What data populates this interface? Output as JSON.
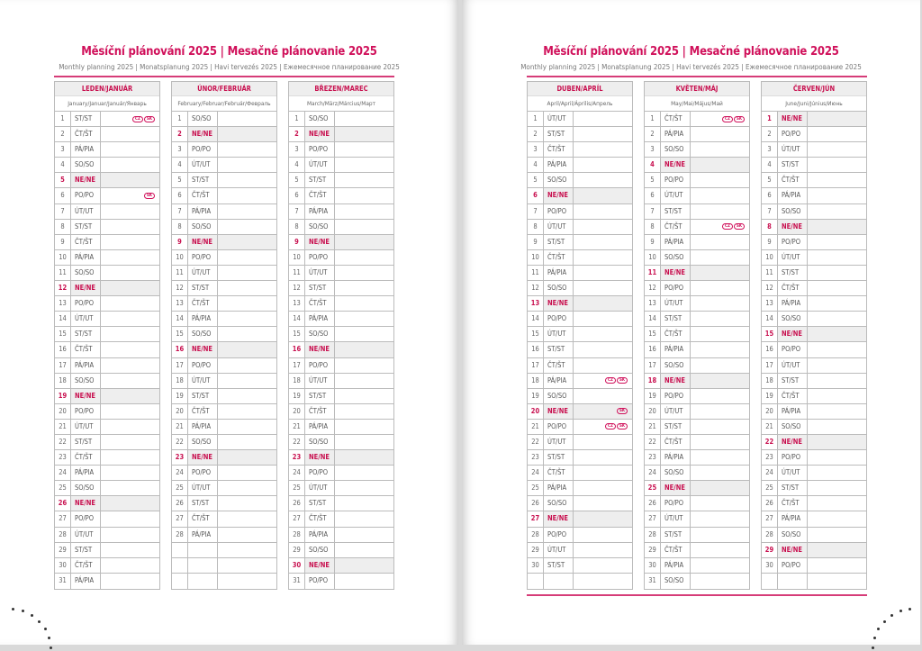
{
  "colors": {
    "accent": "#d0105a",
    "sunday_bg": "#eeeeee"
  },
  "pages": [
    {
      "title": "Měsíční plánování 2025 | Mesačné plánovanie 2025",
      "subtitle": "Monthly planning 2025 | Monatsplanung 2025 | Havi tervezés 2025 | Ежемесячное планирование 2025",
      "months": [
        {
          "name": "LEDEN/JANUÁR",
          "names": "January/Januar/Január/Январь",
          "holidays": {
            "1": [
              "CZ",
              "SK"
            ],
            "6": [
              "SK"
            ]
          },
          "days": [
            "ST/ST",
            "ČT/ŠT",
            "PÁ/PIA",
            "SO/SO",
            "NE/NE",
            "PO/PO",
            "ÚT/UT",
            "ST/ST",
            "ČT/ŠT",
            "PÁ/PIA",
            "SO/SO",
            "NE/NE",
            "PO/PO",
            "ÚT/UT",
            "ST/ST",
            "ČT/ŠT",
            "PÁ/PIA",
            "SO/SO",
            "NE/NE",
            "PO/PO",
            "ÚT/UT",
            "ST/ST",
            "ČT/ŠT",
            "PÁ/PIA",
            "SO/SO",
            "NE/NE",
            "PO/PO",
            "ÚT/UT",
            "ST/ST",
            "ČT/ŠT",
            "PÁ/PIA"
          ]
        },
        {
          "name": "ÚNOR/FEBRUÁR",
          "names": "February/Februar/Február/Февраль",
          "holidays": {},
          "days": [
            "SO/SO",
            "NE/NE",
            "PO/PO",
            "ÚT/UT",
            "ST/ST",
            "ČT/ŠT",
            "PÁ/PIA",
            "SO/SO",
            "NE/NE",
            "PO/PO",
            "ÚT/UT",
            "ST/ST",
            "ČT/ŠT",
            "PÁ/PIA",
            "SO/SO",
            "NE/NE",
            "PO/PO",
            "ÚT/UT",
            "ST/ST",
            "ČT/ŠT",
            "PÁ/PIA",
            "SO/SO",
            "NE/NE",
            "PO/PO",
            "ÚT/UT",
            "ST/ST",
            "ČT/ŠT",
            "PÁ/PIA"
          ]
        },
        {
          "name": "BŘEZEN/MAREC",
          "names": "March/März/Március/Март",
          "holidays": {},
          "days": [
            "SO/SO",
            "NE/NE",
            "PO/PO",
            "ÚT/UT",
            "ST/ST",
            "ČT/ŠT",
            "PÁ/PIA",
            "SO/SO",
            "NE/NE",
            "PO/PO",
            "ÚT/UT",
            "ST/ST",
            "ČT/ŠT",
            "PÁ/PIA",
            "SO/SO",
            "NE/NE",
            "PO/PO",
            "ÚT/UT",
            "ST/ST",
            "ČT/ŠT",
            "PÁ/PIA",
            "SO/SO",
            "NE/NE",
            "PO/PO",
            "ÚT/UT",
            "ST/ST",
            "ČT/ŠT",
            "PÁ/PIA",
            "SO/SO",
            "NE/NE",
            "PO/PO"
          ]
        }
      ]
    },
    {
      "title": "Měsíční plánování 2025 | Mesačné plánovanie 2025",
      "subtitle": "Monthly planning 2025 | Monatsplanung 2025 | Havi tervezés 2025 | Ежемесячное планирование 2025",
      "months": [
        {
          "name": "DUBEN/APRÍL",
          "names": "April/April/Április/Апрель",
          "holidays": {
            "18": [
              "CZ",
              "SK"
            ],
            "20": [
              "SK"
            ],
            "21": [
              "CZ",
              "SK"
            ]
          },
          "days": [
            "ÚT/UT",
            "ST/ST",
            "ČT/ŠT",
            "PÁ/PIA",
            "SO/SO",
            "NE/NE",
            "PO/PO",
            "ÚT/UT",
            "ST/ST",
            "ČT/ŠT",
            "PÁ/PIA",
            "SO/SO",
            "NE/NE",
            "PO/PO",
            "ÚT/UT",
            "ST/ST",
            "ČT/ŠT",
            "PÁ/PIA",
            "SO/SO",
            "NE/NE",
            "PO/PO",
            "ÚT/UT",
            "ST/ST",
            "ČT/ŠT",
            "PÁ/PIA",
            "SO/SO",
            "NE/NE",
            "PO/PO",
            "ÚT/UT",
            "ST/ST"
          ]
        },
        {
          "name": "KVĚTEN/MÁJ",
          "names": "May/Mai/Május/Май",
          "holidays": {
            "1": [
              "CZ",
              "SK"
            ],
            "8": [
              "CZ",
              "SK"
            ]
          },
          "days": [
            "ČT/ŠT",
            "PÁ/PIA",
            "SO/SO",
            "NE/NE",
            "PO/PO",
            "ÚT/UT",
            "ST/ST",
            "ČT/ŠT",
            "PÁ/PIA",
            "SO/SO",
            "NE/NE",
            "PO/PO",
            "ÚT/UT",
            "ST/ST",
            "ČT/ŠT",
            "PÁ/PIA",
            "SO/SO",
            "NE/NE",
            "PO/PO",
            "ÚT/UT",
            "ST/ST",
            "ČT/ŠT",
            "PÁ/PIA",
            "SO/SO",
            "NE/NE",
            "PO/PO",
            "ÚT/UT",
            "ST/ST",
            "ČT/ŠT",
            "PÁ/PIA",
            "SO/SO"
          ]
        },
        {
          "name": "ČERVEN/JÚN",
          "names": "June/Juni/Június/Июнь",
          "holidays": {},
          "days": [
            "NE/NE",
            "PO/PO",
            "ÚT/UT",
            "ST/ST",
            "ČT/ŠT",
            "PÁ/PIA",
            "SO/SO",
            "NE/NE",
            "PO/PO",
            "ÚT/UT",
            "ST/ST",
            "ČT/ŠT",
            "PÁ/PIA",
            "SO/SO",
            "NE/NE",
            "PO/PO",
            "ÚT/UT",
            "ST/ST",
            "ČT/ŠT",
            "PÁ/PIA",
            "SO/SO",
            "NE/NE",
            "PO/PO",
            "ÚT/UT",
            "ST/ST",
            "ČT/ŠT",
            "PÁ/PIA",
            "SO/SO",
            "NE/NE",
            "PO/PO"
          ]
        }
      ]
    }
  ]
}
